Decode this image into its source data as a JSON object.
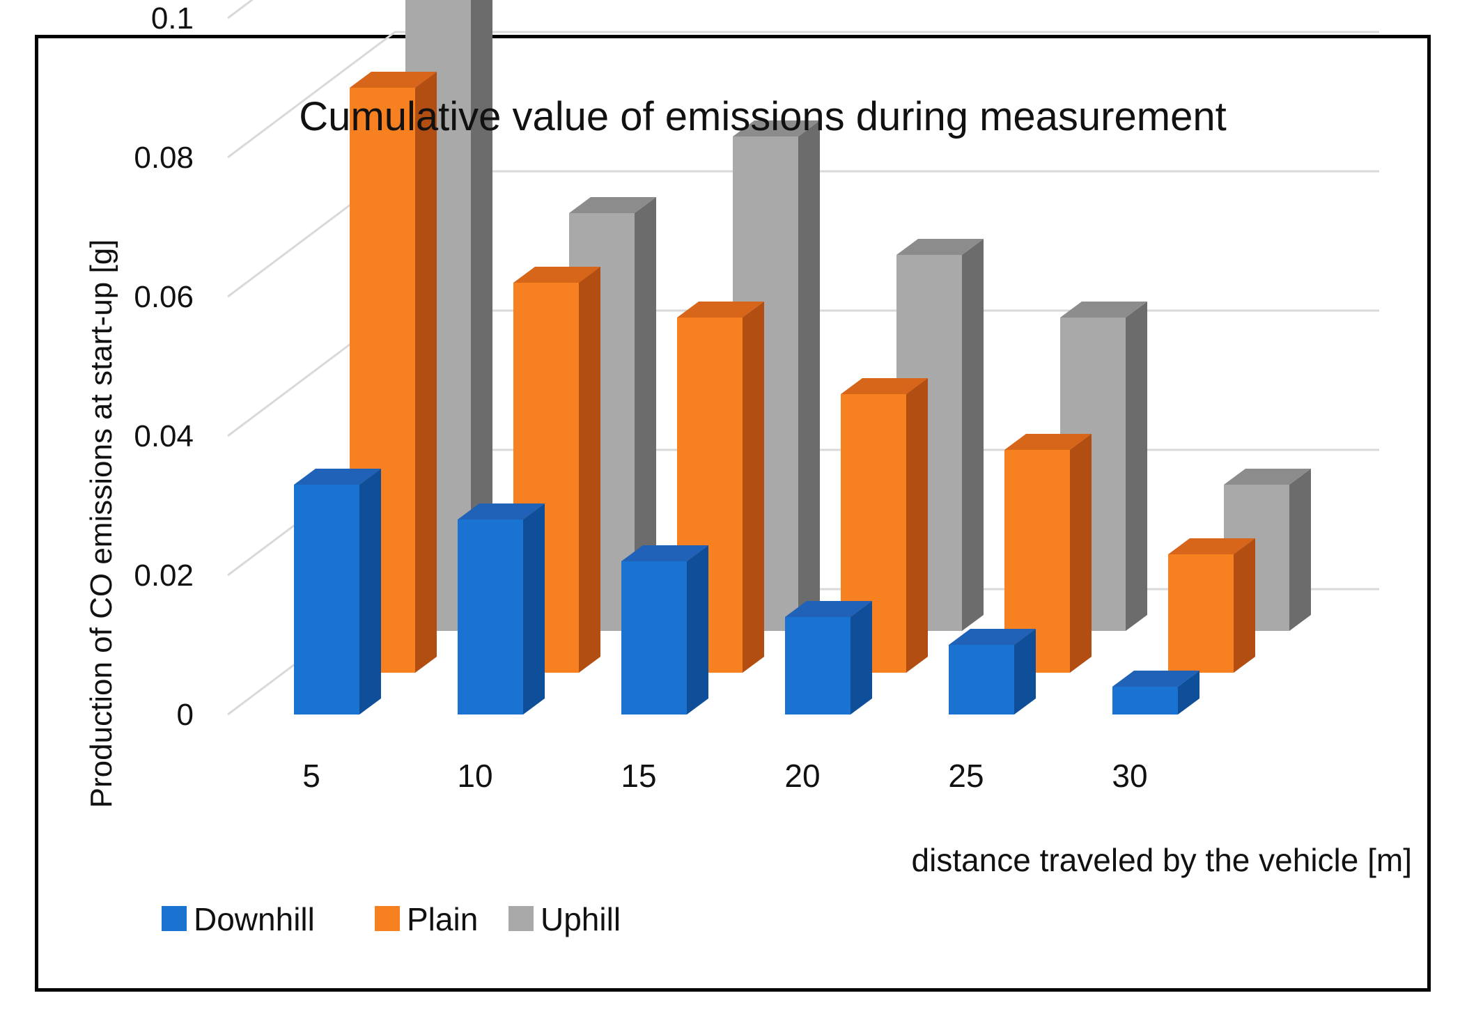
{
  "chart_data": {
    "type": "bar",
    "style": "3d-clustered-depth",
    "title": "Cumulative value of emissions during measurement",
    "xlabel": "distance traveled by the vehicle [m]",
    "ylabel": "Production of CO emissions at start-up [g]",
    "categories": [
      "5",
      "10",
      "15",
      "20",
      "25",
      "30"
    ],
    "y_ticks": [
      "0",
      "0.02",
      "0.04",
      "0.06",
      "0.08",
      "0.1"
    ],
    "ylim": [
      0,
      0.1
    ],
    "grid": true,
    "legend_position": "bottom-left",
    "series": [
      {
        "name": "Downhill",
        "values": [
          0.033,
          0.028,
          0.022,
          0.014,
          0.01,
          0.004
        ],
        "colors": {
          "front": "#1b73d1",
          "side": "#0f4f99",
          "top": "#1f62b7"
        }
      },
      {
        "name": "Plain",
        "values": [
          0.084,
          0.056,
          0.051,
          0.04,
          0.032,
          0.017
        ],
        "colors": {
          "front": "#f78021",
          "side": "#b24e12",
          "top": "#d7661a"
        }
      },
      {
        "name": "Uphill",
        "values": [
          0.095,
          0.06,
          0.071,
          0.054,
          0.045,
          0.021
        ],
        "colors": {
          "front": "#a9a9a9",
          "side": "#6c6c6c",
          "top": "#8c8c8c"
        }
      }
    ],
    "colors": {
      "gridline": "#d9d9d9",
      "frame": "#000000",
      "text": "#111111"
    }
  }
}
